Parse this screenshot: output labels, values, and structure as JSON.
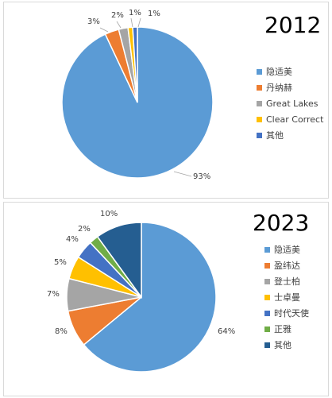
{
  "chart_data": [
    {
      "type": "pie",
      "title": "2012",
      "categories": [
        "隐适美",
        "丹纳赫",
        "Great Lakes",
        "Clear Correct",
        "其他"
      ],
      "values": [
        93,
        3,
        2,
        1,
        1
      ],
      "labels": [
        "93%",
        "3%",
        "2%",
        "1%",
        "1%"
      ],
      "colors": [
        "#5b9bd5",
        "#ed7d31",
        "#a5a5a5",
        "#ffc000",
        "#4472c4"
      ],
      "legend_position": "right"
    },
    {
      "type": "pie",
      "title": "2023",
      "categories": [
        "隐适美",
        "盈纬达",
        "登士柏",
        "士卓曼",
        "时代天使",
        "正雅",
        "其他"
      ],
      "values": [
        64,
        8,
        7,
        5,
        4,
        2,
        10
      ],
      "labels": [
        "64%",
        "8%",
        "7%",
        "5%",
        "4%",
        "2%",
        "10%"
      ],
      "colors": [
        "#5b9bd5",
        "#ed7d31",
        "#a5a5a5",
        "#ffc000",
        "#4472c4",
        "#70ad47",
        "#255e91"
      ],
      "legend_position": "right"
    }
  ]
}
